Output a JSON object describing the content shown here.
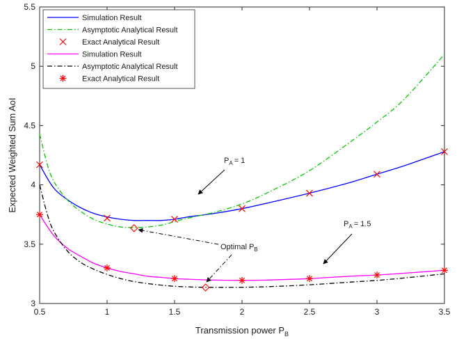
{
  "chart_data": {
    "type": "line",
    "xlabel": "Transmission power P",
    "xlabel_sub": "B",
    "ylabel": "Expected Weighted Sum AoI",
    "xlim": [
      0.5,
      3.5
    ],
    "ylim": [
      3,
      5.5
    ],
    "xticks": [
      "0.5",
      "1",
      "1.5",
      "2",
      "2.5",
      "3",
      "3.5"
    ],
    "yticks": [
      "3",
      "3.5",
      "4",
      "4.5",
      "5",
      "5.5"
    ],
    "grid": false,
    "legend_position": "top-left",
    "colors": {
      "blue": "#0000ff",
      "green": "#00cc00",
      "red": "#ff0000",
      "magenta": "#ff00ff",
      "black": "#000000"
    },
    "series": [
      {
        "name": "Simulation Result",
        "style": "solid",
        "color": "blue",
        "x": [
          0.5,
          0.6,
          0.7,
          0.8,
          0.9,
          1.0,
          1.1,
          1.2,
          1.3,
          1.4,
          1.5,
          1.6,
          1.8,
          2.0,
          2.2,
          2.5,
          2.8,
          3.0,
          3.2,
          3.5
        ],
        "y": [
          4.17,
          3.98,
          3.88,
          3.81,
          3.76,
          3.73,
          3.71,
          3.7,
          3.7,
          3.7,
          3.71,
          3.73,
          3.76,
          3.8,
          3.85,
          3.93,
          4.02,
          4.09,
          4.16,
          4.28
        ]
      },
      {
        "name": "Asymptotic Analytical Result",
        "style": "dashdot",
        "color": "green",
        "x": [
          0.5,
          0.55,
          0.6,
          0.7,
          0.8,
          0.9,
          1.0,
          1.1,
          1.2,
          1.3,
          1.4,
          1.5,
          1.6,
          1.8,
          2.0,
          2.2,
          2.5,
          2.8,
          3.0,
          3.2,
          3.5
        ],
        "y": [
          4.43,
          4.2,
          4.04,
          3.88,
          3.78,
          3.71,
          3.67,
          3.645,
          3.64,
          3.645,
          3.66,
          3.69,
          3.72,
          3.77,
          3.84,
          3.94,
          4.12,
          4.36,
          4.53,
          4.72,
          5.1
        ]
      },
      {
        "name": "Exact Analytical Result",
        "style": "x-marker",
        "color": "red",
        "x": [
          0.5,
          1.0,
          1.5,
          2.0,
          2.5,
          3.0,
          3.5
        ],
        "y": [
          4.17,
          3.72,
          3.71,
          3.8,
          3.93,
          4.09,
          4.28
        ]
      },
      {
        "name": "Simulation Result",
        "style": "solid",
        "color": "magenta",
        "x": [
          0.5,
          0.6,
          0.7,
          0.8,
          0.9,
          1.0,
          1.1,
          1.2,
          1.3,
          1.4,
          1.5,
          1.6,
          1.7,
          1.8,
          2.0,
          2.2,
          2.5,
          2.8,
          3.0,
          3.2,
          3.5
        ],
        "y": [
          3.75,
          3.58,
          3.47,
          3.4,
          3.34,
          3.3,
          3.27,
          3.25,
          3.23,
          3.22,
          3.21,
          3.205,
          3.2,
          3.197,
          3.195,
          3.198,
          3.21,
          3.23,
          3.24,
          3.255,
          3.28
        ]
      },
      {
        "name": "Asymptotic Analytical Result",
        "style": "dashdot",
        "color": "black",
        "x": [
          0.5,
          0.55,
          0.6,
          0.7,
          0.8,
          0.9,
          1.0,
          1.1,
          1.2,
          1.3,
          1.4,
          1.5,
          1.6,
          1.7,
          1.8,
          2.0,
          2.2,
          2.5,
          2.8,
          3.0,
          3.2,
          3.5
        ],
        "y": [
          4.0,
          3.78,
          3.62,
          3.45,
          3.35,
          3.29,
          3.245,
          3.21,
          3.185,
          3.168,
          3.155,
          3.145,
          3.14,
          3.137,
          3.136,
          3.137,
          3.142,
          3.158,
          3.18,
          3.195,
          3.215,
          3.25
        ]
      },
      {
        "name": "Exact Analytical Result",
        "style": "star-marker",
        "color": "red",
        "x": [
          0.5,
          1.0,
          1.5,
          2.0,
          2.5,
          3.0,
          3.5
        ],
        "y": [
          3.75,
          3.3,
          3.21,
          3.195,
          3.21,
          3.24,
          3.28
        ]
      }
    ],
    "optimal_points": [
      {
        "x": 1.2,
        "y": 3.635
      },
      {
        "x": 1.73,
        "y": 3.135
      }
    ],
    "annotations": {
      "pa1_main": "P",
      "pa1_sub": "A",
      "pa1_value": "= 1",
      "pa15_main": "P",
      "pa15_sub": "A",
      "pa15_value": "= 1.5",
      "optimal_main": "Optimal P",
      "optimal_sub": "B"
    }
  }
}
